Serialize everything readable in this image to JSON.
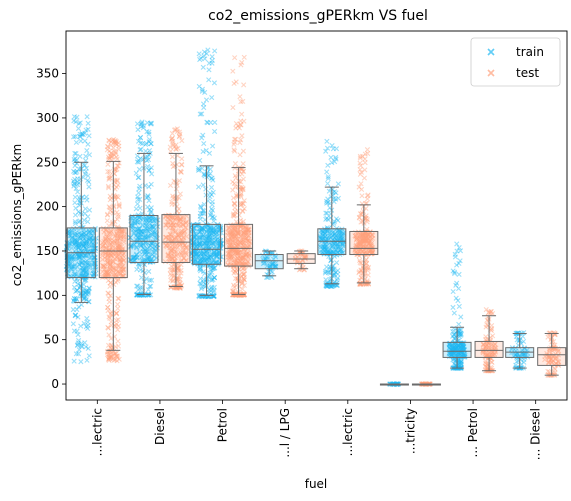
{
  "chart_data": {
    "type": "box-strip",
    "title": "co2_emissions_gPERkm  VS  fuel",
    "xlabel": "fuel",
    "ylabel": "co2_emissions_gPERkm",
    "categories": [
      "...lectric",
      "Diesel",
      "Petrol",
      "...l / LPG",
      "...lectric",
      "...tricity",
      "... Petrol",
      "... Diesel"
    ],
    "ylim": [
      -18,
      398
    ],
    "yticks": [
      0,
      50,
      100,
      150,
      200,
      250,
      300,
      350
    ],
    "legend": {
      "position": "top-right",
      "entries": [
        "train",
        "test"
      ]
    },
    "colors": {
      "train": "#1fb8f2",
      "test": "#ff9f7a",
      "box": "#6b6b6b"
    },
    "series": [
      {
        "name": "train",
        "boxes": [
          {
            "q1": 120,
            "median": 148,
            "q3": 176,
            "whisker_low": 92,
            "whisker_high": 250,
            "point_min": 25,
            "point_max": 305,
            "spread": 30
          },
          {
            "q1": 137,
            "median": 161,
            "q3": 190,
            "whisker_low": 101,
            "whisker_high": 260,
            "point_min": 100,
            "point_max": 300,
            "spread": 28
          },
          {
            "q1": 135,
            "median": 152,
            "q3": 180,
            "whisker_low": 100,
            "whisker_high": 246,
            "point_min": 98,
            "point_max": 380,
            "spread": 30
          },
          {
            "q1": 130,
            "median": 139,
            "q3": 146,
            "whisker_low": 122,
            "whisker_high": 150,
            "point_min": 120,
            "point_max": 150,
            "spread": 14
          },
          {
            "q1": 146,
            "median": 161,
            "q3": 175,
            "whisker_low": 113,
            "whisker_high": 222,
            "point_min": 110,
            "point_max": 275,
            "spread": 24
          },
          {
            "q1": 0,
            "median": 0,
            "q3": 0,
            "whisker_low": 0,
            "whisker_high": 0,
            "point_min": -1,
            "point_max": 1,
            "spread": 10
          },
          {
            "q1": 30,
            "median": 37,
            "q3": 47,
            "whisker_low": 18,
            "whisker_high": 64,
            "point_min": 18,
            "point_max": 160,
            "spread": 16
          },
          {
            "q1": 30,
            "median": 36,
            "q3": 41,
            "whisker_low": 18,
            "whisker_high": 57,
            "point_min": 18,
            "point_max": 58,
            "spread": 16
          }
        ]
      },
      {
        "name": "test",
        "boxes": [
          {
            "q1": 120,
            "median": 150,
            "q3": 176,
            "whisker_low": 38,
            "whisker_high": 251,
            "point_min": 25,
            "point_max": 276,
            "spread": 22
          },
          {
            "q1": 137,
            "median": 160,
            "q3": 191,
            "whisker_low": 110,
            "whisker_high": 260,
            "point_min": 108,
            "point_max": 290,
            "spread": 22
          },
          {
            "q1": 133,
            "median": 153,
            "q3": 180,
            "whisker_low": 101,
            "whisker_high": 244,
            "point_min": 100,
            "point_max": 378,
            "spread": 22
          },
          {
            "q1": 136,
            "median": 141,
            "q3": 147,
            "whisker_low": 130,
            "whisker_high": 150,
            "point_min": 128,
            "point_max": 150,
            "spread": 12
          },
          {
            "q1": 146,
            "median": 153,
            "q3": 172,
            "whisker_low": 114,
            "whisker_high": 202,
            "point_min": 112,
            "point_max": 265,
            "spread": 18
          },
          {
            "q1": 0,
            "median": 0,
            "q3": 0,
            "whisker_low": 0,
            "whisker_high": 0,
            "point_min": -1,
            "point_max": 1,
            "spread": 10
          },
          {
            "q1": 30,
            "median": 38,
            "q3": 48,
            "whisker_low": 15,
            "whisker_high": 77,
            "point_min": 15,
            "point_max": 84,
            "spread": 14
          },
          {
            "q1": 21,
            "median": 33,
            "q3": 41,
            "whisker_low": 10,
            "whisker_high": 57,
            "point_min": 10,
            "point_max": 58,
            "spread": 14
          }
        ]
      }
    ]
  }
}
